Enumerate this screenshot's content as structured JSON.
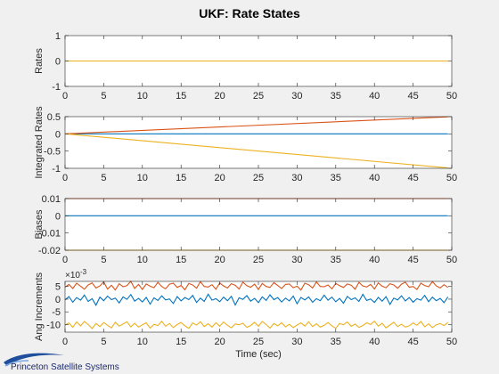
{
  "title": "UKF: Rate States",
  "logo_text": "Princeton Satellite Systems",
  "colors": {
    "blue": "#0072bd",
    "red": "#d95319",
    "yellow": "#edb120",
    "axis": "#262626",
    "grid": "#dcdcdc"
  },
  "chart_data": [
    {
      "type": "line",
      "ylabel": "Rates",
      "xlim": [
        0,
        50
      ],
      "ylim": [
        -1,
        1
      ],
      "xticks": [
        0,
        5,
        10,
        15,
        20,
        25,
        30,
        35,
        40,
        45,
        50
      ],
      "yticks": [
        -1,
        0,
        1
      ],
      "ytick_labels": [
        "-1",
        "0",
        "1"
      ],
      "series": [
        {
          "color": "blue",
          "x": [
            0,
            49.5
          ],
          "y": [
            0,
            0
          ]
        },
        {
          "color": "red",
          "x": [
            0,
            49.5
          ],
          "y": [
            0,
            0
          ]
        },
        {
          "color": "yellow",
          "x": [
            0,
            49.5
          ],
          "y": [
            0,
            0
          ]
        }
      ]
    },
    {
      "type": "line",
      "ylabel": "Integrated Rates",
      "xlim": [
        0,
        50
      ],
      "ylim": [
        -1,
        0.5
      ],
      "xticks": [
        0,
        5,
        10,
        15,
        20,
        25,
        30,
        35,
        40,
        45,
        50
      ],
      "yticks": [
        -1,
        -0.5,
        0,
        0.5
      ],
      "ytick_labels": [
        "-1",
        "-0.5",
        "0",
        "0.5"
      ],
      "series": [
        {
          "color": "blue",
          "x": [
            0,
            49.5
          ],
          "y": [
            0,
            0
          ]
        },
        {
          "color": "red",
          "x": [
            0,
            49.5
          ],
          "y": [
            0,
            0.495
          ]
        },
        {
          "color": "yellow",
          "x": [
            0,
            49.5
          ],
          "y": [
            0,
            -0.99
          ]
        }
      ]
    },
    {
      "type": "line",
      "ylabel": "Biases",
      "xlim": [
        0,
        50
      ],
      "ylim": [
        -0.02,
        0.01
      ],
      "xticks": [
        0,
        5,
        10,
        15,
        20,
        25,
        30,
        35,
        40,
        45,
        50
      ],
      "yticks": [
        -0.02,
        -0.01,
        0,
        0.01
      ],
      "ytick_labels": [
        "-0.02",
        "-0.01",
        "0",
        "0.01"
      ],
      "series": [
        {
          "color": "blue",
          "x": [
            0,
            49.5
          ],
          "y": [
            0,
            0
          ]
        },
        {
          "color": "red",
          "x": [
            0,
            49.5
          ],
          "y": [
            0.01,
            0.01
          ]
        },
        {
          "color": "yellow",
          "x": [
            0,
            49.5
          ],
          "y": [
            -0.02,
            -0.02
          ]
        }
      ]
    },
    {
      "type": "line",
      "ylabel": "Ang Increments",
      "xlabel": "Time (sec)",
      "exponent_label": "×10",
      "exponent_power": "-3",
      "xlim": [
        0,
        50
      ],
      "ylim": [
        -13,
        7
      ],
      "xticks": [
        0,
        5,
        10,
        15,
        20,
        25,
        30,
        35,
        40,
        45,
        50
      ],
      "yticks": [
        -10,
        -5,
        0,
        5
      ],
      "ytick_labels": [
        "-10",
        "-5",
        "0",
        "5"
      ],
      "series": [
        {
          "color": "red",
          "x_start": 0,
          "x_step": 0.5,
          "y": [
            4.7,
            5.8,
            4.2,
            6.3,
            5.1,
            3.9,
            5.6,
            6.4,
            4.4,
            5.2,
            6.8,
            4.0,
            5.5,
            3.6,
            6.1,
            4.9,
            5.3,
            7.0,
            4.2,
            5.8,
            3.8,
            6.0,
            5.1,
            4.5,
            6.6,
            5.0,
            4.1,
            5.9,
            6.3,
            4.6,
            5.4,
            3.7,
            6.2,
            5.6,
            4.3,
            6.9,
            5.0,
            4.8,
            5.7,
            3.9,
            6.4,
            5.2,
            4.4,
            6.1,
            5.5,
            4.0,
            6.7,
            5.3,
            4.7,
            5.9,
            3.8,
            6.2,
            5.0,
            4.6,
            6.5,
            5.4,
            4.2,
            5.8,
            6.0,
            4.5,
            5.1,
            3.6,
            6.3,
            5.7,
            4.4,
            6.8,
            5.0,
            4.9,
            5.6,
            4.1,
            6.2,
            5.3,
            4.6,
            6.0,
            5.5,
            3.9,
            6.6,
            5.2,
            4.8,
            5.8,
            4.0,
            6.4,
            5.1,
            4.5,
            6.1,
            5.6,
            4.3,
            5.9,
            6.7,
            4.7,
            5.0,
            3.8,
            6.3,
            5.4,
            4.9,
            6.9,
            5.2,
            4.4,
            5.7,
            4.6
          ]
        },
        {
          "color": "blue",
          "x_start": 0,
          "x_step": 0.5,
          "y": [
            -0.3,
            1.0,
            -1.2,
            0.6,
            -0.4,
            1.6,
            -0.9,
            0.2,
            -2.4,
            0.8,
            -0.6,
            1.2,
            -0.2,
            0.4,
            -1.5,
            0.9,
            -0.1,
            1.8,
            -0.8,
            0.3,
            -1.1,
            0.7,
            -2.0,
            0.5,
            -0.5,
            1.3,
            -0.3,
            0.1,
            -1.7,
            1.0,
            -0.7,
            0.6,
            -0.2,
            1.5,
            -1.3,
            0.4,
            -0.9,
            2.0,
            -0.4,
            0.2,
            -1.0,
            0.8,
            -0.6,
            1.1,
            -2.3,
            0.5,
            -0.1,
            1.4,
            -0.8,
            0.3,
            -1.4,
            0.9,
            -0.5,
            1.7,
            -0.2,
            0.6,
            -1.1,
            0.4,
            -0.7,
            1.2,
            -1.8,
            0.7,
            -0.3,
            0.9,
            -1.2,
            0.2,
            -0.6,
            1.6,
            -0.4,
            0.8,
            -1.0,
            0.3,
            -1.6,
            1.1,
            -0.2,
            0.5,
            -0.9,
            1.9,
            -0.5,
            0.1,
            -1.3,
            0.7,
            -0.8,
            1.0,
            -2.1,
            0.4,
            -0.3,
            1.3,
            -0.7,
            0.6,
            -1.2,
            0.2,
            -0.4,
            1.5,
            -1.0,
            0.8,
            -0.6,
            0.3,
            -1.4,
            0.9
          ]
        },
        {
          "color": "yellow",
          "x_start": 0,
          "x_step": 0.5,
          "y": [
            -10.2,
            -9.4,
            -11.1,
            -9.0,
            -10.5,
            -8.8,
            -10.0,
            -11.6,
            -9.6,
            -10.8,
            -9.2,
            -10.3,
            -11.3,
            -9.1,
            -10.6,
            -9.8,
            -8.9,
            -10.9,
            -9.5,
            -11.0,
            -10.1,
            -9.3,
            -11.4,
            -9.9,
            -10.4,
            -8.7,
            -10.7,
            -9.6,
            -11.2,
            -10.0,
            -9.2,
            -10.5,
            -11.5,
            -9.4,
            -10.2,
            -8.9,
            -10.8,
            -9.7,
            -11.0,
            -9.3,
            -10.6,
            -9.0,
            -10.3,
            -11.3,
            -9.8,
            -10.1,
            -9.5,
            -11.1,
            -10.4,
            -9.1,
            -10.7,
            -8.8,
            -10.0,
            -11.4,
            -9.6,
            -10.5,
            -9.3,
            -10.9,
            -9.9,
            -11.2,
            -10.2,
            -9.4,
            -10.6,
            -8.9,
            -10.8,
            -9.7,
            -11.0,
            -10.3,
            -9.2,
            -10.5,
            -11.5,
            -9.6,
            -10.1,
            -9.0,
            -10.7,
            -9.8,
            -11.1,
            -10.4,
            -9.3,
            -10.0,
            -8.7,
            -10.6,
            -9.5,
            -11.3,
            -10.2,
            -9.1,
            -10.8,
            -9.9,
            -11.0,
            -10.5,
            -9.4,
            -10.3,
            -8.8,
            -10.9,
            -9.7,
            -11.2,
            -10.1,
            -9.6,
            -10.4,
            -9.2
          ]
        }
      ]
    }
  ]
}
